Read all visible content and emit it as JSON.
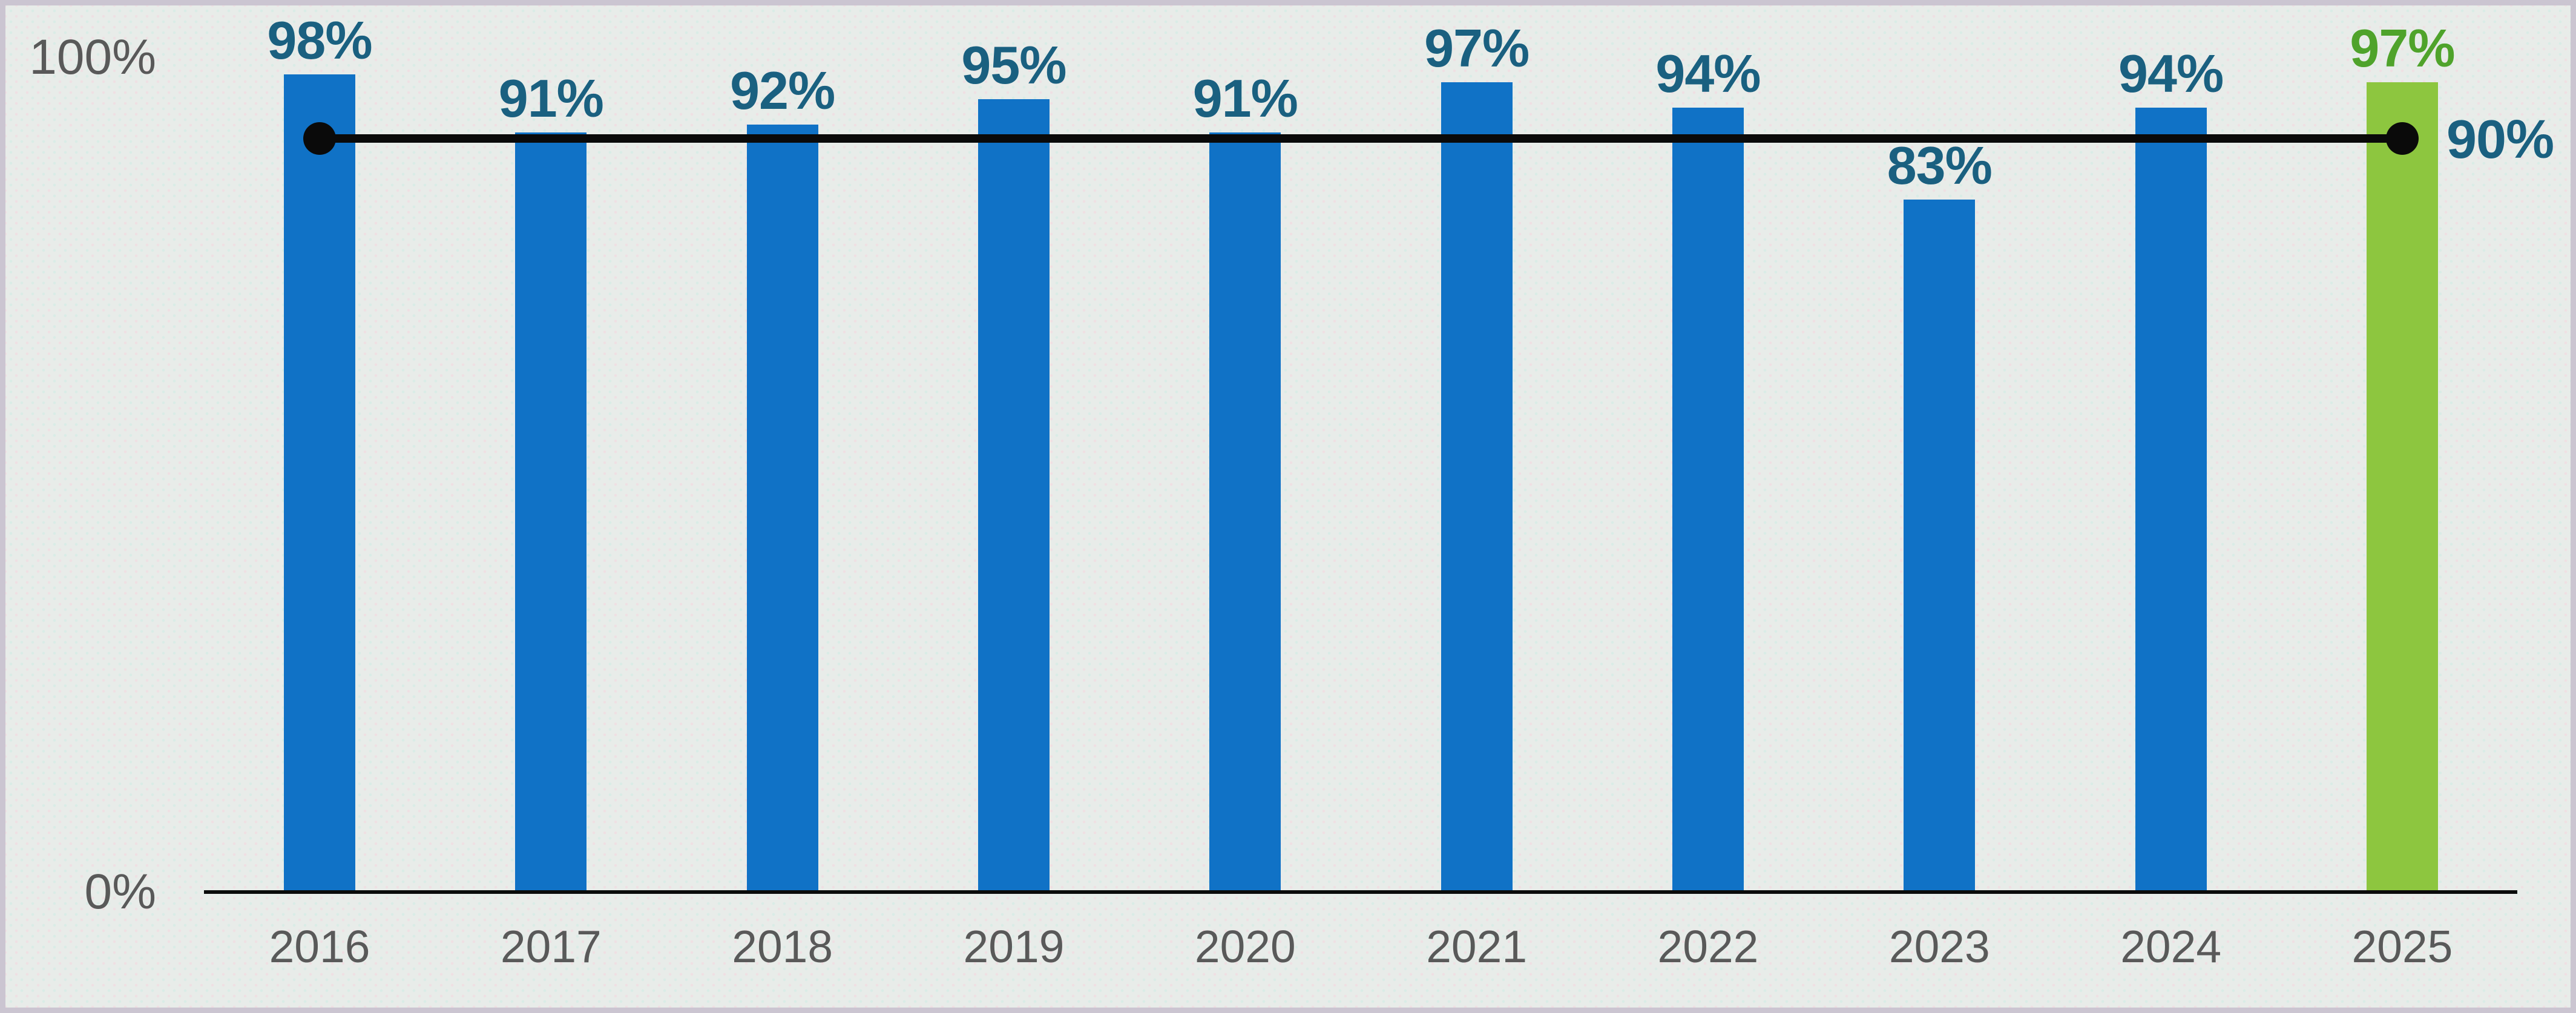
{
  "chart_data": {
    "type": "bar",
    "categories": [
      "2016",
      "2017",
      "2018",
      "2019",
      "2020",
      "2021",
      "2022",
      "2023",
      "2024",
      "2025"
    ],
    "values": [
      98,
      91,
      92,
      95,
      91,
      97,
      94,
      83,
      94,
      97
    ],
    "data_labels": [
      "98%",
      "91%",
      "92%",
      "95%",
      "91%",
      "97%",
      "94%",
      "83%",
      "94%",
      "97%"
    ],
    "highlight_index": 9,
    "reference_line": {
      "value": 90,
      "label": "90%"
    },
    "y_ticks": [
      {
        "value": 100,
        "label": "100%"
      },
      {
        "value": 0,
        "label": "0%"
      }
    ],
    "ylim": [
      0,
      100
    ],
    "grid": false,
    "legend": false,
    "title": "",
    "xlabel": "",
    "ylabel": ""
  },
  "colors": {
    "bar_default": "#1072c6",
    "bar_highlight": "#8dc63f",
    "value_label_default": "#1a6080",
    "value_label_highlight": "#4fa32b",
    "reference_line": "#0a0a0a",
    "axis_line": "#0a0a0a",
    "axis_text": "#595959",
    "background": "#e8ece9",
    "frame_border": "#cbc5d1"
  }
}
